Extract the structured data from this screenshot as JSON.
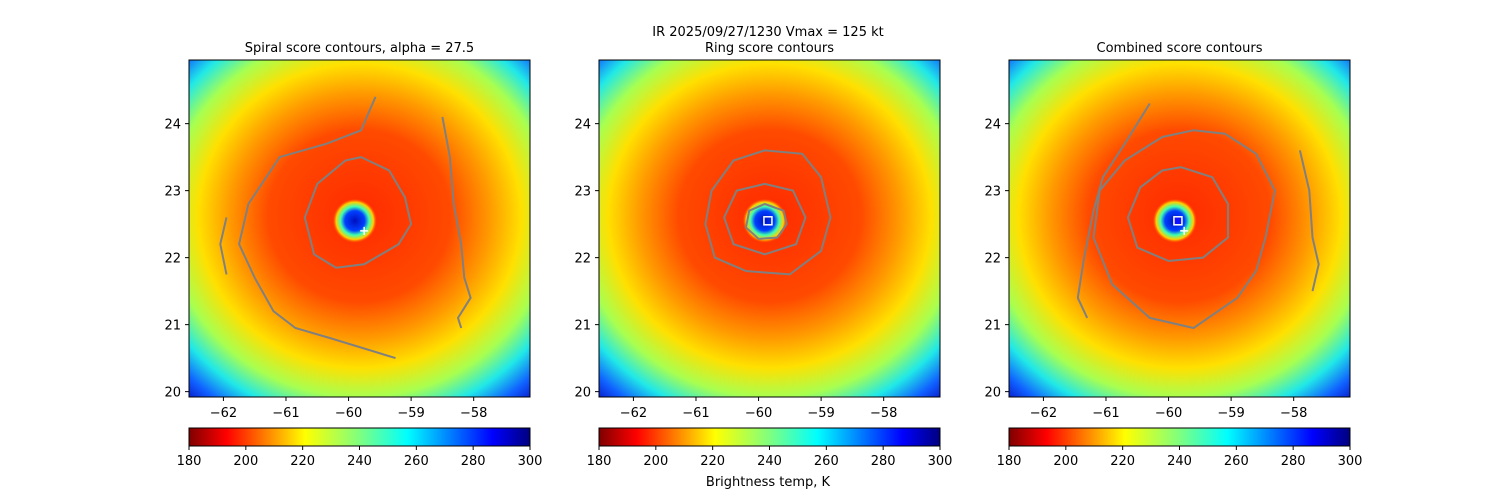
{
  "figure": {
    "suptitle_line1": "IR  2025/09/27/1230    Vmax = 125 kt",
    "colorbar_label": "Brightness temp, K"
  },
  "chart_data": [
    {
      "type": "heatmap",
      "title": "Spiral score contours, alpha = 27.5",
      "xlabel": "",
      "ylabel": "",
      "x_range": [
        -62.55,
        -57.1
      ],
      "y_range": [
        19.92,
        24.95
      ],
      "x_ticks": [
        -62,
        -61,
        -60,
        -59,
        -58
      ],
      "y_ticks": [
        20,
        21,
        22,
        23,
        24
      ],
      "colorbar": {
        "vmin": 180,
        "vmax": 300,
        "ticks": [
          180,
          200,
          220,
          240,
          260,
          280,
          300
        ],
        "colormap": "jet_r"
      },
      "eye_center": [
        -59.9,
        22.55
      ],
      "best_track_marker": [
        -59.75,
        22.4
      ],
      "markers": [],
      "contours": [
        {
          "level": "outer",
          "points": [
            [
              -59.57,
              24.4
            ],
            [
              -59.8,
              23.9
            ],
            [
              -60.35,
              23.7
            ],
            [
              -61.1,
              23.5
            ],
            [
              -61.6,
              22.8
            ],
            [
              -61.75,
              22.2
            ],
            [
              -61.5,
              21.7
            ],
            [
              -61.2,
              21.2
            ],
            [
              -60.85,
              20.95
            ],
            [
              -60.3,
              20.8
            ],
            [
              -59.25,
              20.5
            ]
          ]
        },
        {
          "level": "outer-east",
          "points": [
            [
              -58.5,
              24.1
            ],
            [
              -58.38,
              23.5
            ],
            [
              -58.32,
              22.8
            ],
            [
              -58.2,
              22.2
            ],
            [
              -58.15,
              21.7
            ],
            [
              -58.05,
              21.4
            ],
            [
              -58.25,
              21.1
            ],
            [
              -58.2,
              20.95
            ]
          ]
        },
        {
          "level": "inner",
          "points": [
            [
              -59.8,
              23.5
            ],
            [
              -59.35,
              23.3
            ],
            [
              -59.1,
              22.9
            ],
            [
              -59.0,
              22.5
            ],
            [
              -59.2,
              22.2
            ],
            [
              -59.75,
              21.9
            ],
            [
              -60.2,
              21.85
            ],
            [
              -60.55,
              22.05
            ],
            [
              -60.7,
              22.6
            ],
            [
              -60.5,
              23.1
            ],
            [
              -60.05,
              23.45
            ]
          ]
        },
        {
          "level": "west-tail",
          "points": [
            [
              -61.95,
              22.6
            ],
            [
              -62.05,
              22.2
            ],
            [
              -61.95,
              21.75
            ]
          ]
        }
      ]
    },
    {
      "type": "heatmap",
      "title": "Ring score contours",
      "xlabel": "",
      "ylabel": "",
      "x_range": [
        -62.55,
        -57.1
      ],
      "y_range": [
        19.92,
        24.95
      ],
      "x_ticks": [
        -62,
        -61,
        -60,
        -59,
        -58
      ],
      "y_ticks": [
        20,
        21,
        22,
        23,
        24
      ],
      "colorbar": {
        "vmin": 180,
        "vmax": 300,
        "ticks": [
          180,
          200,
          220,
          240,
          260,
          280,
          300
        ],
        "colormap": "jet_r"
      },
      "eye_center": [
        -59.9,
        22.55
      ],
      "best_track_marker": null,
      "markers": [
        {
          "shape": "square",
          "at": [
            -59.85,
            22.55
          ]
        }
      ],
      "contours": [
        {
          "level": "ring-outer",
          "points": [
            [
              -59.9,
              23.6
            ],
            [
              -59.3,
              23.55
            ],
            [
              -59.0,
              23.2
            ],
            [
              -58.85,
              22.6
            ],
            [
              -59.0,
              22.1
            ],
            [
              -59.5,
              21.75
            ],
            [
              -60.2,
              21.8
            ],
            [
              -60.7,
              22.0
            ],
            [
              -60.85,
              22.5
            ],
            [
              -60.75,
              23.0
            ],
            [
              -60.4,
              23.45
            ]
          ]
        },
        {
          "level": "ring-mid",
          "points": [
            [
              -59.9,
              23.1
            ],
            [
              -59.45,
              23.0
            ],
            [
              -59.25,
              22.6
            ],
            [
              -59.4,
              22.2
            ],
            [
              -59.9,
              22.05
            ],
            [
              -60.4,
              22.2
            ],
            [
              -60.55,
              22.6
            ],
            [
              -60.35,
              23.0
            ]
          ]
        },
        {
          "level": "ring-inner",
          "points": [
            [
              -59.9,
              22.8
            ],
            [
              -59.6,
              22.7
            ],
            [
              -59.55,
              22.5
            ],
            [
              -59.7,
              22.3
            ],
            [
              -60.0,
              22.28
            ],
            [
              -60.2,
              22.45
            ],
            [
              -60.15,
              22.7
            ]
          ]
        }
      ]
    },
    {
      "type": "heatmap",
      "title": "Combined score contours",
      "xlabel": "",
      "ylabel": "",
      "x_range": [
        -62.55,
        -57.1
      ],
      "y_range": [
        19.92,
        24.95
      ],
      "x_ticks": [
        -62,
        -61,
        -60,
        -59,
        -58
      ],
      "y_ticks": [
        20,
        21,
        22,
        23,
        24
      ],
      "colorbar": {
        "vmin": 180,
        "vmax": 300,
        "ticks": [
          180,
          200,
          220,
          240,
          260,
          280,
          300
        ],
        "colormap": "jet_r"
      },
      "eye_center": [
        -59.9,
        22.55
      ],
      "best_track_marker": [
        -59.75,
        22.4
      ],
      "markers": [
        {
          "shape": "square-filled",
          "at": [
            -59.85,
            22.55
          ]
        }
      ],
      "contours": [
        {
          "level": "outer",
          "points": [
            [
              -59.6,
              23.9
            ],
            [
              -59.1,
              23.85
            ],
            [
              -58.6,
              23.55
            ],
            [
              -58.3,
              23.0
            ],
            [
              -58.45,
              22.3
            ],
            [
              -58.6,
              21.8
            ],
            [
              -58.9,
              21.4
            ],
            [
              -59.6,
              20.95
            ],
            [
              -60.3,
              21.1
            ],
            [
              -60.9,
              21.6
            ],
            [
              -61.2,
              22.3
            ],
            [
              -61.1,
              23.0
            ],
            [
              -60.7,
              23.45
            ],
            [
              -60.1,
              23.8
            ]
          ]
        },
        {
          "level": "inner",
          "points": [
            [
              -59.8,
              23.35
            ],
            [
              -59.3,
              23.2
            ],
            [
              -59.05,
              22.8
            ],
            [
              -59.05,
              22.3
            ],
            [
              -59.45,
              22.0
            ],
            [
              -60.0,
              21.95
            ],
            [
              -60.5,
              22.15
            ],
            [
              -60.65,
              22.6
            ],
            [
              -60.45,
              23.05
            ],
            [
              -60.1,
              23.3
            ]
          ]
        },
        {
          "level": "west-arm",
          "points": [
            [
              -60.3,
              24.3
            ],
            [
              -60.7,
              23.7
            ],
            [
              -61.05,
              23.2
            ],
            [
              -61.2,
              22.7
            ],
            [
              -61.35,
              22.0
            ],
            [
              -61.45,
              21.4
            ],
            [
              -61.3,
              21.1
            ]
          ]
        },
        {
          "level": "east-arm",
          "points": [
            [
              -57.9,
              23.6
            ],
            [
              -57.75,
              23.0
            ],
            [
              -57.7,
              22.3
            ],
            [
              -57.6,
              21.9
            ],
            [
              -57.7,
              21.5
            ]
          ]
        }
      ]
    }
  ]
}
